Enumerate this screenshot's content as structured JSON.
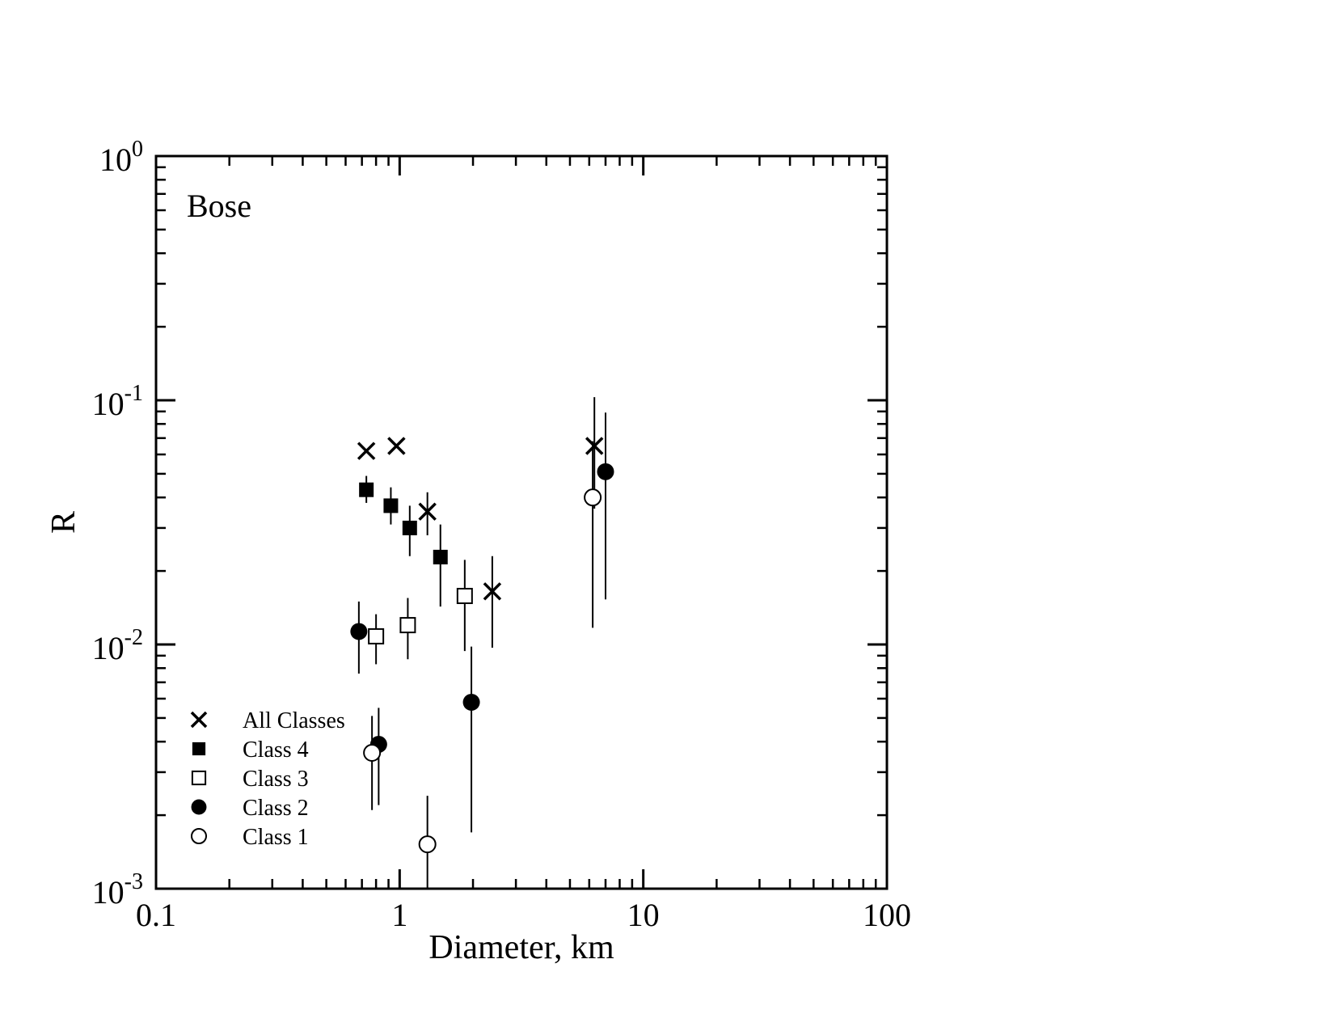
{
  "chart_data": {
    "type": "scatter",
    "title": "",
    "panel_label": "Bose",
    "xlabel": "Diameter, km",
    "ylabel": "R",
    "xscale": "log",
    "yscale": "log",
    "xlim": [
      0.1,
      100
    ],
    "ylim": [
      0.001,
      1
    ],
    "x_tick_labels": [
      "0.1",
      "1",
      "10",
      "100"
    ],
    "y_tick_labels": [
      {
        "base": "10",
        "exp": "0",
        "value": 1
      },
      {
        "base": "10",
        "exp": "-1",
        "value": 0.1
      },
      {
        "base": "10",
        "exp": "-2",
        "value": 0.01
      },
      {
        "base": "10",
        "exp": "-3",
        "value": 0.001
      }
    ],
    "grid": false,
    "legend_position": "bottom-left",
    "series": [
      {
        "name": "All Classes",
        "marker": "x",
        "points": [
          {
            "x": 0.73,
            "y": 0.062
          },
          {
            "x": 0.97,
            "y": 0.065
          },
          {
            "x": 1.3,
            "y": 0.035,
            "ylo": 0.028,
            "yhi": 0.042
          },
          {
            "x": 2.4,
            "y": 0.0165,
            "ylo": 0.0097,
            "yhi": 0.023
          },
          {
            "x": 6.3,
            "y": 0.065,
            "ylo": 0.036,
            "yhi": 0.103
          }
        ]
      },
      {
        "name": "Class 4",
        "marker": "filled-square",
        "points": [
          {
            "x": 0.73,
            "y": 0.043,
            "ylo": 0.038,
            "yhi": 0.049
          },
          {
            "x": 0.92,
            "y": 0.037,
            "ylo": 0.031,
            "yhi": 0.044
          },
          {
            "x": 1.1,
            "y": 0.03,
            "ylo": 0.023,
            "yhi": 0.037
          },
          {
            "x": 1.47,
            "y": 0.0228,
            "ylo": 0.0143,
            "yhi": 0.031
          }
        ]
      },
      {
        "name": "Class 3",
        "marker": "open-square",
        "points": [
          {
            "x": 0.8,
            "y": 0.0108,
            "ylo": 0.0083,
            "yhi": 0.0133
          },
          {
            "x": 1.08,
            "y": 0.012,
            "ylo": 0.0087,
            "yhi": 0.0155
          },
          {
            "x": 1.85,
            "y": 0.0158,
            "ylo": 0.0094,
            "yhi": 0.0222
          }
        ]
      },
      {
        "name": "Class 2",
        "marker": "filled-circle",
        "points": [
          {
            "x": 0.68,
            "y": 0.0113,
            "ylo": 0.0076,
            "yhi": 0.015
          },
          {
            "x": 0.82,
            "y": 0.0039,
            "ylo": 0.0022,
            "yhi": 0.0055
          },
          {
            "x": 1.97,
            "y": 0.0058,
            "ylo": 0.0017,
            "yhi": 0.0098
          },
          {
            "x": 7.0,
            "y": 0.051,
            "ylo": 0.0153,
            "yhi": 0.089
          }
        ]
      },
      {
        "name": "Class 1",
        "marker": "open-circle",
        "points": [
          {
            "x": 0.77,
            "y": 0.0036,
            "ylo": 0.0021,
            "yhi": 0.0051
          },
          {
            "x": 1.3,
            "y": 0.00152,
            "ylo": 0.001,
            "yhi": 0.0024
          },
          {
            "x": 6.2,
            "y": 0.04,
            "ylo": 0.0117,
            "yhi": 0.068
          }
        ]
      }
    ]
  }
}
